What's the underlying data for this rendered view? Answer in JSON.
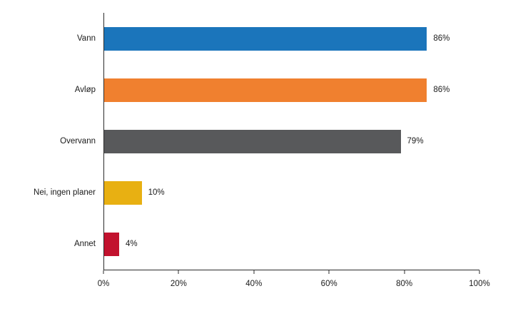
{
  "chart_data": {
    "type": "bar",
    "orientation": "horizontal",
    "title": "",
    "xlabel": "",
    "ylabel": "",
    "categories": [
      "Vann",
      "Avløp",
      "Overvann",
      "Nei, ingen planer",
      "Annet"
    ],
    "values": [
      86,
      86,
      79,
      10,
      4
    ],
    "value_labels": [
      "86%",
      "86%",
      "79%",
      "10%",
      "4%"
    ],
    "colors": [
      "#1b75bb",
      "#f0802f",
      "#58595b",
      "#e8b012",
      "#c2122e"
    ],
    "xlim": [
      0,
      100
    ],
    "x_ticks": [
      "0%",
      "20%",
      "40%",
      "60%",
      "80%",
      "100%"
    ],
    "grid": "off",
    "legend": "none",
    "background_color": "#ffffff",
    "axis_color": "#2b2b2b"
  }
}
